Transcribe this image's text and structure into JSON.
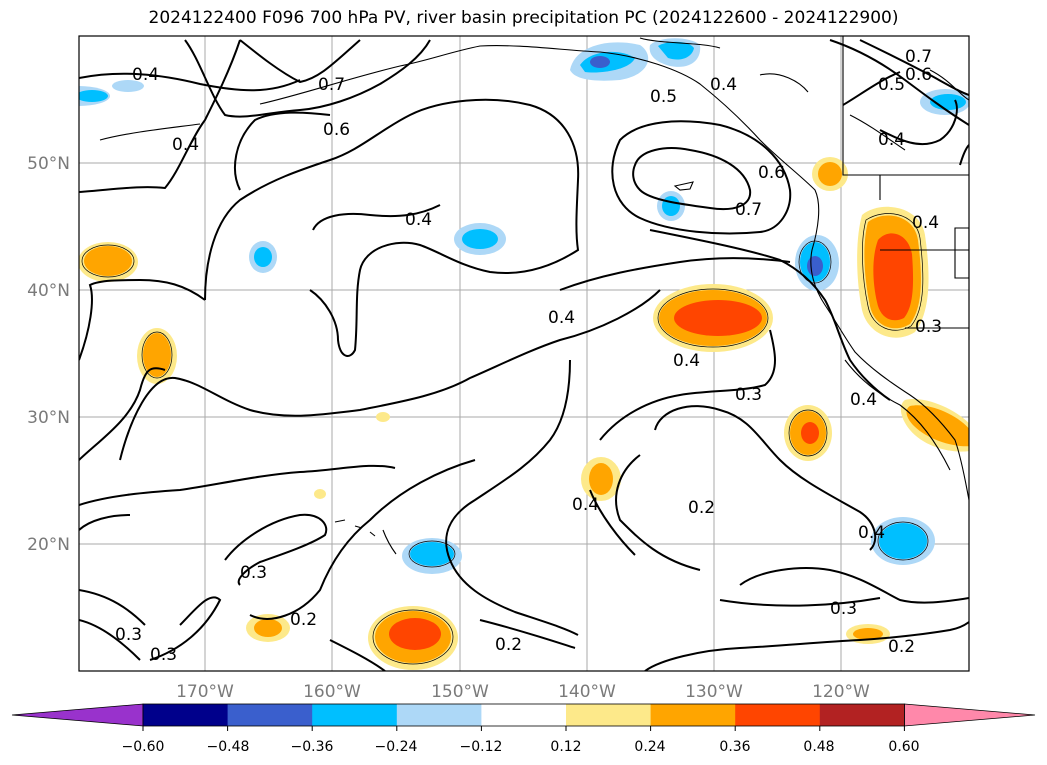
{
  "title": "2024122400 F096 700 hPa PV, river basin precipitation PC (2024122600 - 2024122900)",
  "lat_ticks": [
    "50°N",
    "40°N",
    "30°N",
    "20°N"
  ],
  "lon_ticks": [
    "170°W",
    "160°W",
    "150°W",
    "140°W",
    "130°W",
    "120°W"
  ],
  "contour_labels": [
    "0.4",
    "0.7",
    "0.6",
    "0.4",
    "0.4",
    "0.5",
    "0.7",
    "0.6",
    "0.5",
    "0.4",
    "0.7",
    "0.6",
    "0.4",
    "0.4",
    "0.4",
    "0.4",
    "0.3",
    "0.4",
    "0.3",
    "0.2",
    "0.4",
    "0.3",
    "0.2",
    "0.3",
    "0.3",
    "0.2",
    "0.3",
    "0.4",
    "0.2"
  ],
  "colorbar": {
    "colors": [
      "#9932cc",
      "#00008b",
      "#3a5fcd",
      "#00bfff",
      "#add8f7",
      "#ffffff",
      "#fde98a",
      "#ffa500",
      "#ff4500",
      "#b22222",
      "#ff88aa"
    ],
    "labels": [
      "−0.60",
      "−0.48",
      "−0.36",
      "−0.24",
      "−0.12",
      "0.12",
      "0.24",
      "0.36",
      "0.48",
      "0.60"
    ]
  }
}
